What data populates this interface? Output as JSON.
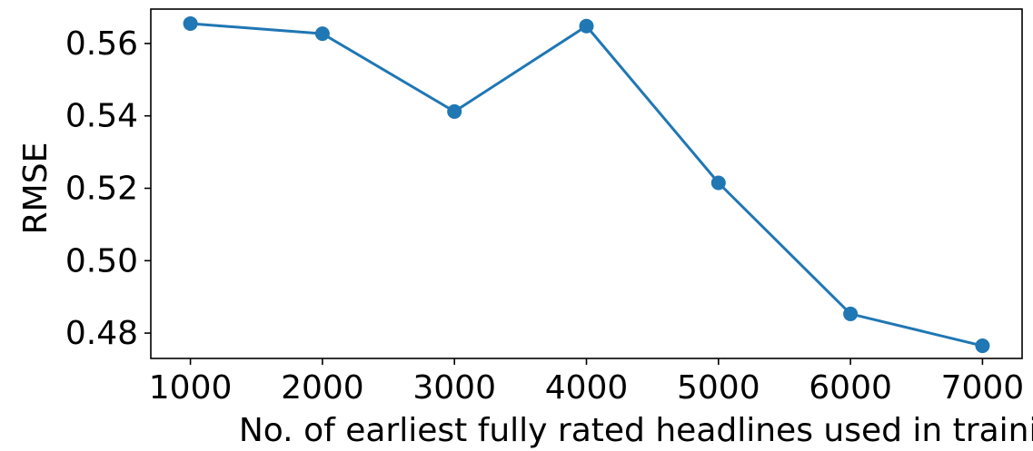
{
  "chart_data": {
    "type": "line",
    "title": "",
    "xlabel": "No. of earliest fully rated headlines used in training",
    "ylabel": "RMSE",
    "x": [
      1000,
      2000,
      3000,
      4000,
      5000,
      6000,
      7000
    ],
    "xticks": [
      "1000",
      "2000",
      "3000",
      "4000",
      "5000",
      "6000",
      "7000"
    ],
    "xlim": [
      700,
      7300
    ],
    "ylim": [
      0.473,
      0.5695
    ],
    "yticks": [
      0.48,
      0.5,
      0.52,
      0.54,
      0.56
    ],
    "ytick_labels": [
      "0.48",
      "0.50",
      "0.52",
      "0.54",
      "0.56"
    ],
    "series": [
      {
        "values": [
          0.5655,
          0.5627,
          0.5412,
          0.5648,
          0.5215,
          0.4853,
          0.4765
        ],
        "color": "#1f77b4"
      }
    ],
    "grid": false,
    "legend": "none",
    "marker": "circle"
  }
}
